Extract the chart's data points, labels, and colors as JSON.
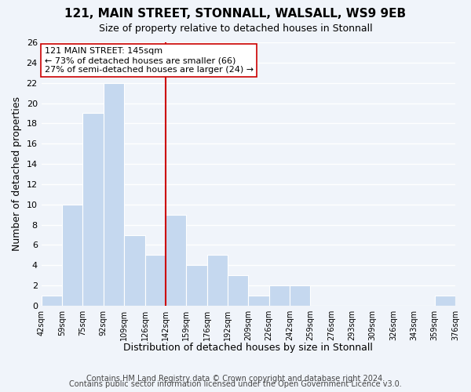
{
  "title": "121, MAIN STREET, STONNALL, WALSALL, WS9 9EB",
  "subtitle": "Size of property relative to detached houses in Stonnall",
  "xlabel": "Distribution of detached houses by size in Stonnall",
  "ylabel": "Number of detached properties",
  "footnote1": "Contains HM Land Registry data © Crown copyright and database right 2024.",
  "footnote2": "Contains public sector information licensed under the Open Government Licence v3.0.",
  "bin_labels": [
    "42sqm",
    "59sqm",
    "75sqm",
    "92sqm",
    "109sqm",
    "126sqm",
    "142sqm",
    "159sqm",
    "176sqm",
    "192sqm",
    "209sqm",
    "226sqm",
    "242sqm",
    "259sqm",
    "276sqm",
    "293sqm",
    "309sqm",
    "326sqm",
    "343sqm",
    "359sqm",
    "376sqm"
  ],
  "bar_heights": [
    1,
    10,
    19,
    22,
    7,
    5,
    9,
    4,
    5,
    3,
    1,
    2,
    2,
    0,
    0,
    0,
    0,
    0,
    0,
    1
  ],
  "bar_color": "#c5d8ef",
  "bar_edge_color": "#ffffff",
  "reference_bin_index": 6,
  "reference_line_color": "#cc0000",
  "annotation_box_edge_color": "#cc0000",
  "annotation_box_face_color": "#ffffff",
  "annotation_title": "121 MAIN STREET: 145sqm",
  "annotation_line1": "← 73% of detached houses are smaller (66)",
  "annotation_line2": "27% of semi-detached houses are larger (24) →",
  "ylim": [
    0,
    26
  ],
  "yticks": [
    0,
    2,
    4,
    6,
    8,
    10,
    12,
    14,
    16,
    18,
    20,
    22,
    24,
    26
  ],
  "background_color": "#f0f4fa",
  "grid_color": "#ffffff",
  "title_fontsize": 11,
  "subtitle_fontsize": 9,
  "axis_label_fontsize": 9,
  "tick_fontsize": 8,
  "annotation_fontsize": 8,
  "footnote_fontsize": 7
}
